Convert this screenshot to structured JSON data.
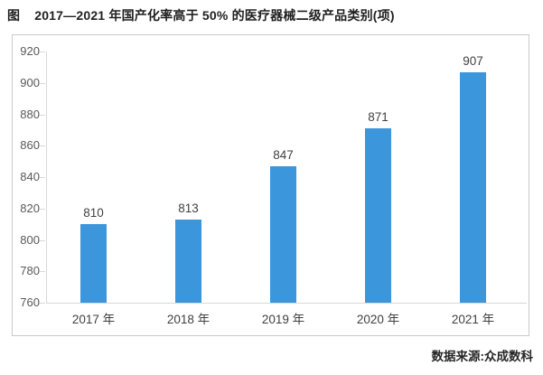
{
  "header": {
    "figure_label": "图",
    "title": "2017—2021 年国产化率高于 50% 的医疗器械二级产品类别(项)"
  },
  "footer": {
    "source": "数据来源:众成数科"
  },
  "colors": {
    "bar": "#3b96db",
    "axis_line": "#d9d9d9",
    "box_border": "#c9c9c9",
    "y_tick_label": "#595959",
    "value_label": "#404040",
    "title_text": "#1f1f1f"
  },
  "chart_data": {
    "type": "bar",
    "title": "2017—2021 年国产化率高于 50% 的医疗器械二级产品类别(项)",
    "categories": [
      "2017 年",
      "2018 年",
      "2019 年",
      "2020 年",
      "2021 年"
    ],
    "values": [
      810,
      813,
      847,
      871,
      907
    ],
    "data_labels": [
      "810",
      "813",
      "847",
      "871",
      "907"
    ],
    "xlabel": "",
    "ylabel": "",
    "ylim": [
      760,
      920
    ],
    "yticks": [
      760,
      780,
      800,
      820,
      840,
      860,
      880,
      900,
      920
    ],
    "grid": false,
    "legend_position": "none",
    "bar_color": "#3b96db",
    "source": "数据来源:众成数科"
  }
}
